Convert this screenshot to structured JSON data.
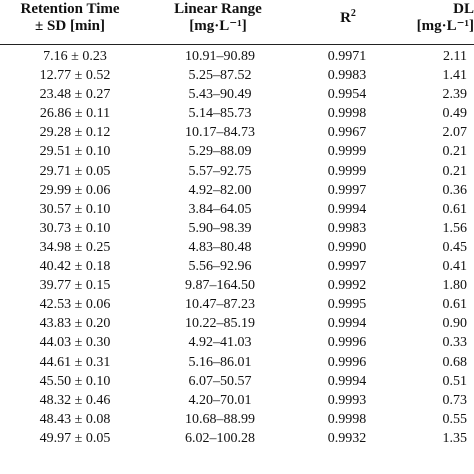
{
  "headers": {
    "retention_line1": "Retention Time",
    "retention_line2": "± SD [min]",
    "range_line1": "Linear Range",
    "range_line2": "[mg·L⁻¹]",
    "r2_base": "R",
    "r2_sup": "2",
    "dl_line1": "DL",
    "dl_line2": "[mg·L⁻¹]"
  },
  "rows": [
    {
      "rt": "7.16 ± 0.23",
      "range": "10.91–90.89",
      "r2": "0.9971",
      "dl": "2.11"
    },
    {
      "rt": "12.77 ± 0.52",
      "range": "5.25–87.52",
      "r2": "0.9983",
      "dl": "1.41"
    },
    {
      "rt": "23.48 ± 0.27",
      "range": "5.43–90.49",
      "r2": "0.9954",
      "dl": "2.39"
    },
    {
      "rt": "26.86 ± 0.11",
      "range": "5.14–85.73",
      "r2": "0.9998",
      "dl": "0.49"
    },
    {
      "rt": "29.28 ± 0.12",
      "range": "10.17–84.73",
      "r2": "0.9967",
      "dl": "2.07"
    },
    {
      "rt": "29.51 ± 0.10",
      "range": "5.29–88.09",
      "r2": "0.9999",
      "dl": "0.21"
    },
    {
      "rt": "29.71 ± 0.05",
      "range": "5.57–92.75",
      "r2": "0.9999",
      "dl": "0.21"
    },
    {
      "rt": "29.99 ± 0.06",
      "range": "4.92–82.00",
      "r2": "0.9997",
      "dl": "0.36"
    },
    {
      "rt": "30.57 ± 0.10",
      "range": "3.84–64.05",
      "r2": "0.9994",
      "dl": "0.61"
    },
    {
      "rt": "30.73 ± 0.10",
      "range": "5.90–98.39",
      "r2": "0.9983",
      "dl": "1.56"
    },
    {
      "rt": "34.98 ± 0.25",
      "range": "4.83–80.48",
      "r2": "0.9990",
      "dl": "0.45"
    },
    {
      "rt": "40.42 ± 0.18",
      "range": "5.56–92.96",
      "r2": "0.9997",
      "dl": "0.41"
    },
    {
      "rt": "39.77 ± 0.15",
      "range": "9.87–164.50",
      "r2": "0.9992",
      "dl": "1.80"
    },
    {
      "rt": "42.53 ± 0.06",
      "range": "10.47–87.23",
      "r2": "0.9995",
      "dl": "0.61"
    },
    {
      "rt": "43.83 ± 0.20",
      "range": "10.22–85.19",
      "r2": "0.9994",
      "dl": "0.90"
    },
    {
      "rt": "44.03 ± 0.30",
      "range": "4.92–41.03",
      "r2": "0.9996",
      "dl": "0.33"
    },
    {
      "rt": "44.61 ± 0.31",
      "range": "5.16–86.01",
      "r2": "0.9996",
      "dl": "0.68"
    },
    {
      "rt": "45.50 ± 0.10",
      "range": "6.07–50.57",
      "r2": "0.9994",
      "dl": "0.51"
    },
    {
      "rt": "48.32 ± 0.46",
      "range": "4.20–70.01",
      "r2": "0.9993",
      "dl": "0.73"
    },
    {
      "rt": "48.43 ± 0.08",
      "range": "10.68–88.99",
      "r2": "0.9998",
      "dl": "0.55"
    },
    {
      "rt": "49.97 ± 0.05",
      "range": "6.02–100.28",
      "r2": "0.9932",
      "dl": "1.35"
    }
  ]
}
